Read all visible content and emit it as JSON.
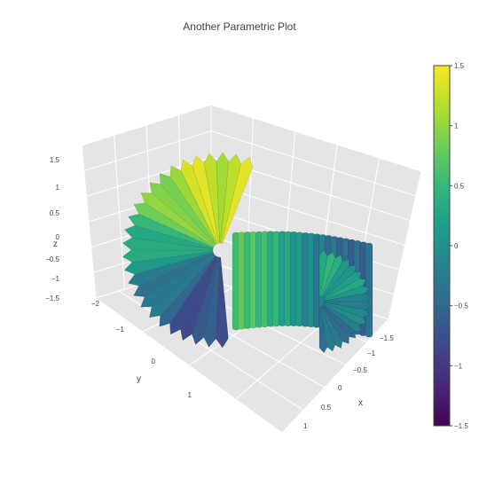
{
  "chart_data": {
    "type": "surface",
    "title": "Another Parametric Plot",
    "colorscale": "Viridis",
    "colorscale_stops": [
      "#440154",
      "#482878",
      "#3e4989",
      "#31688e",
      "#26828e",
      "#1f9e89",
      "#35b779",
      "#6ece58",
      "#b5de2b",
      "#fde725"
    ],
    "axes": {
      "x": {
        "label": "x",
        "range": [
          -1.5,
          1
        ],
        "ticks": [
          "−1.5",
          "−1",
          "−0.5",
          "0",
          "0.5",
          "1"
        ]
      },
      "y": {
        "label": "y",
        "range": [
          -2,
          1
        ],
        "ticks": [
          "−2",
          "−1",
          "0",
          "1"
        ]
      },
      "z": {
        "label": "z",
        "range": [
          -1.5,
          1.5
        ],
        "ticks": [
          "−1.5",
          "−1",
          "−0.5",
          "0",
          "0.5",
          "1",
          "1.5"
        ]
      }
    },
    "colorbar": {
      "range": [
        -1.5,
        1.5
      ],
      "ticks": [
        "1.5",
        "1",
        "0.5",
        "0",
        "−0.5",
        "−1",
        "−1.5"
      ]
    },
    "grid": true
  }
}
